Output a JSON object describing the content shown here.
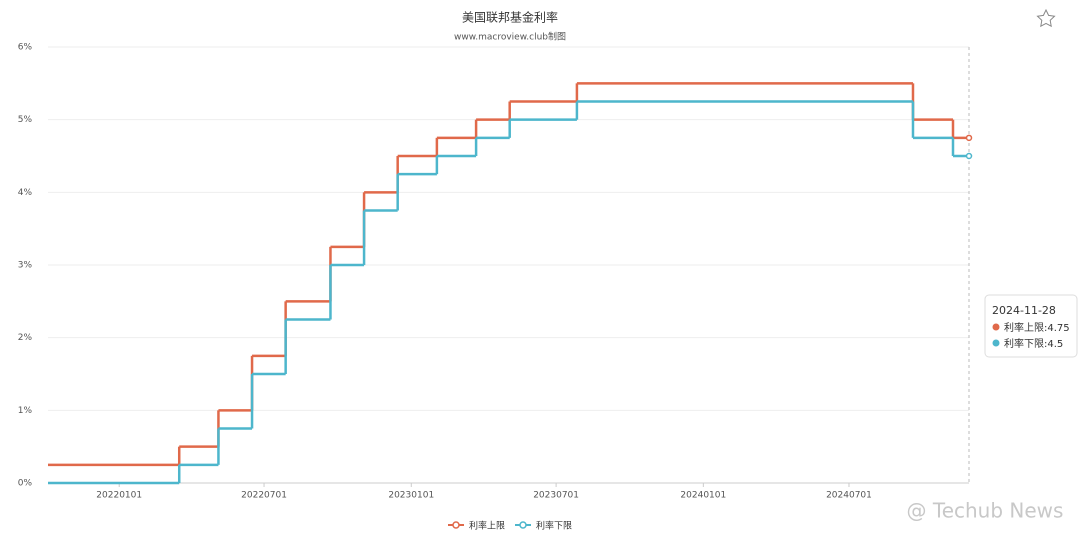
{
  "chart_data": {
    "type": "step-line",
    "title": "美国联邦基金利率",
    "subtitle": "www.macroview.club制图",
    "x": [
      "20211004",
      "20220317",
      "20220505",
      "20220616",
      "20220728",
      "20220922",
      "20221103",
      "20221215",
      "20230202",
      "20230323",
      "20230504",
      "20230727",
      "20240919",
      "20241108",
      "20241128"
    ],
    "series": [
      {
        "name": "利率上限",
        "color": "#e0694a",
        "values": [
          0.25,
          0.5,
          1,
          1.75,
          2.5,
          3.25,
          4,
          4.5,
          4.75,
          5,
          5.25,
          5.5,
          5,
          4.75,
          4.75
        ]
      },
      {
        "name": "利率下限",
        "color": "#4db6cc",
        "values": [
          0,
          0.25,
          0.75,
          1.5,
          2.25,
          3,
          3.75,
          4.25,
          4.5,
          4.75,
          5,
          5.25,
          4.75,
          4.5,
          4.5
        ]
      }
    ],
    "xlim": [
      "20211004",
      "20241128"
    ],
    "xticks": [
      "20220101",
      "20220701",
      "20230101",
      "20230701",
      "20240101",
      "20240701"
    ],
    "ylim": [
      0,
      6
    ],
    "yticks": [
      {
        "value": 0,
        "label": "0%"
      },
      {
        "value": 1,
        "label": "1%"
      },
      {
        "value": 2,
        "label": "2%"
      },
      {
        "value": 3,
        "label": "3%"
      },
      {
        "value": 4,
        "label": "4%"
      },
      {
        "value": 5,
        "label": "5%"
      },
      {
        "value": 6,
        "label": "6%"
      }
    ],
    "grid": true,
    "legend": "bottom",
    "tooltip": {
      "title": "2024-11-28",
      "lines": [
        "利率上限:4.75",
        "利率下限:4.5"
      ]
    },
    "watermark": "@ Techub News"
  }
}
